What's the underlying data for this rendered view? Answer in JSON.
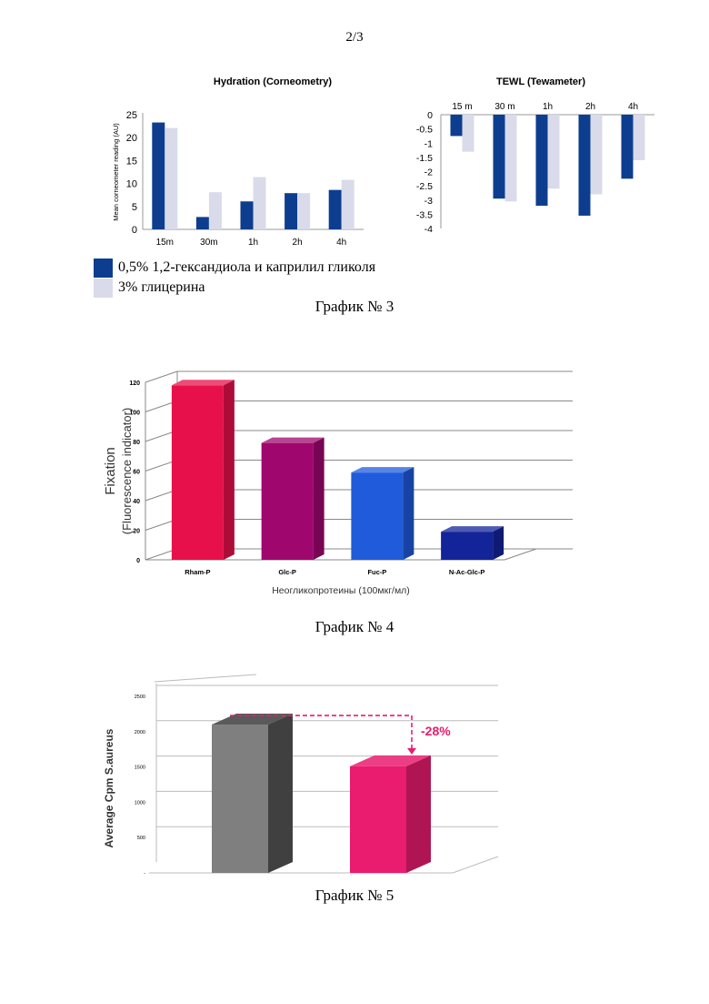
{
  "page": {
    "number": "2/3"
  },
  "legend": {
    "items": [
      {
        "label": "0,5% 1,2-гександиола и каприлил гликоля",
        "color": "#0d3d8e"
      },
      {
        "label": "3% глицерина",
        "color": "#d9dbea"
      }
    ]
  },
  "captions": {
    "g3": "График № 3",
    "g4": "График № 4",
    "g5": "График № 5"
  },
  "chart_data": [
    {
      "type": "bar",
      "title": "Hydration (Corneometry)",
      "ylabel": "Mean corneometer reading (AU)",
      "xlabel": "",
      "categories": [
        "15m",
        "30m",
        "1h",
        "2h",
        "4h"
      ],
      "ylim": [
        0,
        25
      ],
      "yticks": [
        0,
        5,
        10,
        15,
        20,
        25
      ],
      "series": [
        {
          "values": [
            23.3,
            2.7,
            6.1,
            7.9,
            8.6
          ],
          "color": "#0d3d8e"
        },
        {
          "values": [
            22.1,
            8.1,
            11.4,
            7.9,
            10.8
          ],
          "color": "#d9dbea"
        }
      ]
    },
    {
      "type": "bar",
      "title": "TEWL (Tewameter)",
      "categories": [
        "15 m",
        "30 m",
        "1h",
        "2h",
        "4h"
      ],
      "ylim": [
        -4,
        0
      ],
      "yticks": [
        "0",
        "-0.5",
        "-1",
        "-1.5",
        "-2",
        "-2.5",
        "-3",
        "-3.5",
        "-4"
      ],
      "series": [
        {
          "values": [
            -0.75,
            -2.95,
            -3.2,
            -3.55,
            -2.25
          ],
          "color": "#0d3d8e"
        },
        {
          "values": [
            -1.3,
            -3.05,
            -2.6,
            -2.8,
            -1.6
          ],
          "color": "#d9dbea"
        }
      ]
    },
    {
      "type": "bar",
      "ylabel": "Fixation (Fluorescence indicator)",
      "xlabel": "Неогликопротеины (100мкг/мл)",
      "categories": [
        "Rham-P",
        "Glc-P",
        "Fuc-P",
        "N-Ac-Glc-P"
      ],
      "values": [
        118,
        79,
        59,
        19
      ],
      "colors": [
        "#e8104a",
        "#a0076e",
        "#1f5bdb",
        "#13239a"
      ],
      "ylim": [
        0,
        120
      ],
      "yticks": [
        0,
        20,
        40,
        60,
        80,
        100,
        120
      ]
    },
    {
      "type": "bar",
      "ylabel": "Average Cpm S.aureus",
      "categories": [
        "",
        ""
      ],
      "values": [
        2100,
        1510
      ],
      "colors": [
        "#808080",
        "#e91c6f"
      ],
      "ylim": [
        0,
        2500
      ],
      "yticks": [
        "-",
        "500",
        "1000",
        "1500",
        "2000",
        "2500"
      ],
      "annotation": "-28%"
    }
  ]
}
